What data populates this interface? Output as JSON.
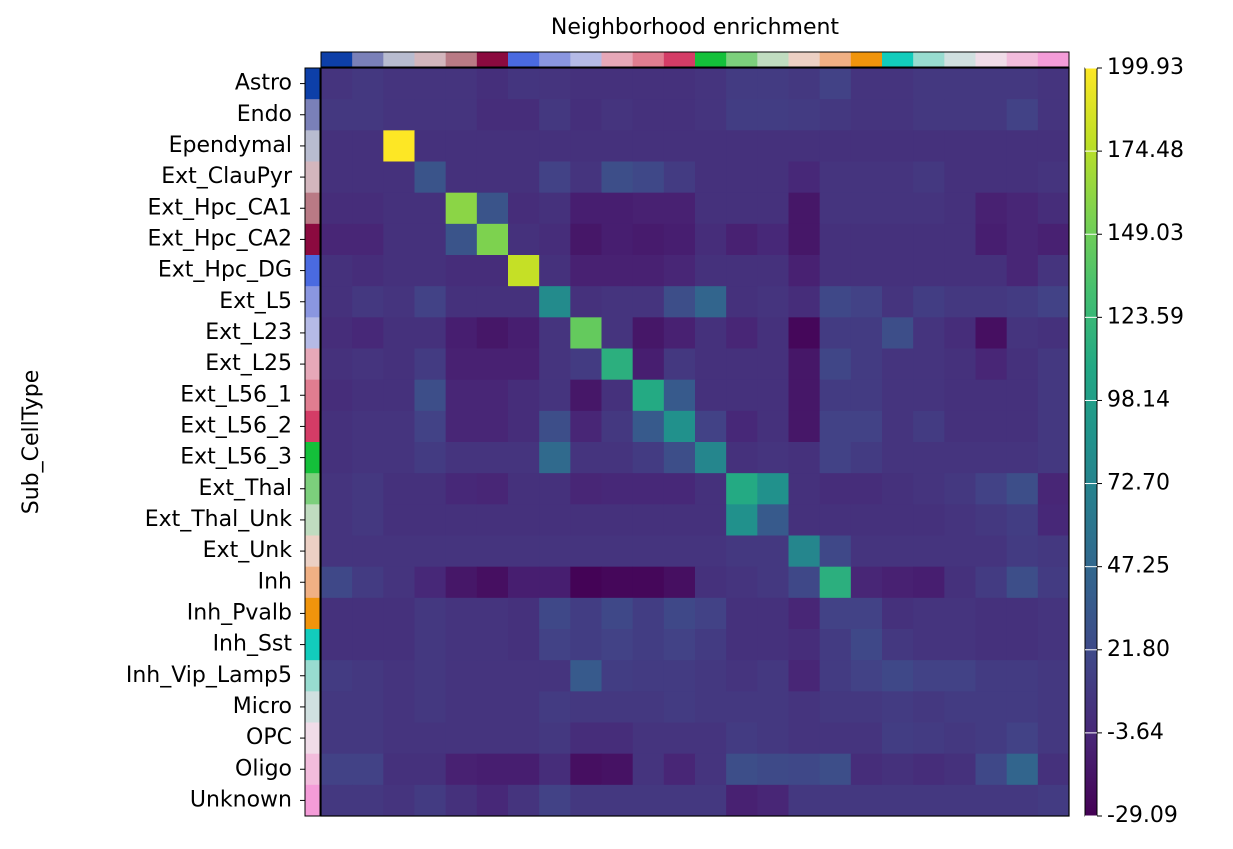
{
  "chart_data": {
    "type": "heatmap",
    "title": "Neighborhood enrichment",
    "ylabel": "Sub_CellType",
    "categories": [
      "Astro",
      "Endo",
      "Ependymal",
      "Ext_ClauPyr",
      "Ext_Hpc_CA1",
      "Ext_Hpc_CA2",
      "Ext_Hpc_DG",
      "Ext_L5",
      "Ext_L23",
      "Ext_L25",
      "Ext_L56_1",
      "Ext_L56_2",
      "Ext_L56_3",
      "Ext_Thal",
      "Ext_Thal_Unk",
      "Ext_Unk",
      "Inh",
      "Inh_Pvalb",
      "Inh_Sst",
      "Inh_Vip_Lamp5",
      "Micro",
      "OPC",
      "Oligo",
      "Unknown"
    ],
    "category_colors": [
      "#0d3fa8",
      "#7a80b8",
      "#b8bcd0",
      "#d3b6bd",
      "#b97a85",
      "#8b0a3f",
      "#4a6ae0",
      "#8a96e0",
      "#b5bae6",
      "#e6a8b8",
      "#e07d90",
      "#d43c66",
      "#14c03a",
      "#7ccf7c",
      "#c0dcc0",
      "#ecd0c4",
      "#f0b084",
      "#f0940c",
      "#12ccbc",
      "#98dcd0",
      "#d0e0e0",
      "#f0dce8",
      "#f2bcdc",
      "#f49cd8"
    ],
    "values": [
      [
        5,
        8,
        5,
        5,
        5,
        2,
        6,
        5,
        3,
        3,
        3,
        3,
        5,
        10,
        10,
        8,
        15,
        5,
        5,
        8,
        8,
        8,
        8,
        5
      ],
      [
        8,
        8,
        5,
        5,
        5,
        0,
        0,
        8,
        2,
        5,
        3,
        3,
        5,
        12,
        12,
        10,
        8,
        5,
        5,
        8,
        8,
        8,
        15,
        5
      ],
      [
        3,
        3,
        199.93,
        3,
        3,
        3,
        3,
        3,
        3,
        3,
        3,
        3,
        3,
        3,
        3,
        3,
        3,
        3,
        3,
        3,
        3,
        3,
        3,
        3
      ],
      [
        3,
        3,
        3,
        30,
        3,
        3,
        3,
        15,
        5,
        25,
        20,
        10,
        3,
        3,
        3,
        -3,
        5,
        5,
        5,
        8,
        3,
        3,
        3,
        5
      ],
      [
        0,
        0,
        3,
        3,
        160,
        30,
        0,
        3,
        -10,
        -10,
        -8,
        -8,
        3,
        3,
        3,
        -15,
        5,
        5,
        5,
        5,
        3,
        -8,
        -5,
        0
      ],
      [
        -5,
        -5,
        3,
        3,
        30,
        155,
        3,
        0,
        -15,
        -10,
        -12,
        -10,
        0,
        -8,
        -3,
        -15,
        3,
        3,
        3,
        3,
        3,
        -10,
        -5,
        -8
      ],
      [
        3,
        0,
        3,
        3,
        0,
        0,
        180,
        3,
        -8,
        -8,
        -8,
        -5,
        3,
        3,
        3,
        -8,
        3,
        3,
        3,
        3,
        3,
        3,
        -5,
        5
      ],
      [
        3,
        8,
        5,
        15,
        3,
        3,
        3,
        80,
        3,
        5,
        5,
        25,
        45,
        3,
        5,
        0,
        20,
        15,
        5,
        12,
        8,
        8,
        10,
        15
      ],
      [
        0,
        -3,
        3,
        3,
        -10,
        -15,
        -10,
        5,
        145,
        5,
        -15,
        -8,
        3,
        -5,
        3,
        -25,
        10,
        10,
        25,
        5,
        0,
        -20,
        5,
        3
      ],
      [
        3,
        5,
        3,
        10,
        -8,
        -8,
        -8,
        5,
        10,
        115,
        -10,
        8,
        3,
        3,
        3,
        -15,
        18,
        10,
        5,
        5,
        3,
        -5,
        3,
        8
      ],
      [
        0,
        3,
        3,
        25,
        -5,
        -5,
        0,
        5,
        -15,
        3,
        110,
        35,
        3,
        3,
        3,
        -15,
        10,
        10,
        5,
        5,
        3,
        3,
        3,
        8
      ],
      [
        3,
        5,
        5,
        15,
        -5,
        -5,
        0,
        25,
        -5,
        8,
        35,
        85,
        15,
        -3,
        3,
        -15,
        15,
        15,
        5,
        10,
        3,
        3,
        3,
        8
      ],
      [
        3,
        5,
        5,
        10,
        5,
        5,
        5,
        50,
        5,
        5,
        10,
        25,
        75,
        3,
        5,
        3,
        15,
        10,
        5,
        5,
        5,
        5,
        5,
        8
      ],
      [
        5,
        8,
        3,
        3,
        -3,
        -5,
        3,
        3,
        -5,
        -3,
        -3,
        -3,
        3,
        110,
        85,
        3,
        0,
        0,
        3,
        5,
        8,
        15,
        25,
        -5
      ],
      [
        5,
        8,
        3,
        3,
        3,
        3,
        3,
        3,
        3,
        3,
        3,
        3,
        3,
        85,
        35,
        3,
        3,
        3,
        3,
        3,
        5,
        8,
        12,
        -3
      ],
      [
        5,
        5,
        5,
        5,
        5,
        5,
        5,
        5,
        5,
        5,
        5,
        5,
        5,
        8,
        8,
        75,
        20,
        5,
        5,
        5,
        5,
        5,
        10,
        8
      ],
      [
        20,
        10,
        5,
        -3,
        -15,
        -20,
        -10,
        -10,
        -28,
        -25,
        -25,
        -20,
        3,
        5,
        8,
        20,
        115,
        -5,
        -8,
        -10,
        3,
        10,
        25,
        10
      ],
      [
        3,
        3,
        3,
        8,
        5,
        5,
        3,
        20,
        12,
        20,
        12,
        20,
        15,
        3,
        3,
        -5,
        15,
        15,
        3,
        5,
        5,
        3,
        3,
        5
      ],
      [
        3,
        3,
        3,
        8,
        5,
        5,
        3,
        15,
        12,
        15,
        12,
        15,
        10,
        3,
        3,
        0,
        10,
        20,
        8,
        5,
        5,
        3,
        3,
        5
      ],
      [
        10,
        8,
        5,
        8,
        5,
        5,
        5,
        5,
        35,
        12,
        10,
        10,
        8,
        5,
        8,
        -5,
        10,
        15,
        20,
        15,
        15,
        10,
        10,
        8
      ],
      [
        8,
        8,
        5,
        8,
        5,
        5,
        5,
        10,
        8,
        8,
        8,
        10,
        8,
        8,
        8,
        5,
        8,
        8,
        10,
        8,
        10,
        10,
        10,
        8
      ],
      [
        8,
        8,
        5,
        5,
        5,
        5,
        5,
        8,
        0,
        0,
        5,
        5,
        5,
        10,
        8,
        5,
        5,
        5,
        12,
        10,
        8,
        10,
        15,
        8
      ],
      [
        15,
        15,
        3,
        3,
        -8,
        -10,
        -10,
        0,
        -20,
        -18,
        5,
        -5,
        5,
        25,
        22,
        20,
        25,
        0,
        3,
        0,
        3,
        20,
        45,
        3
      ],
      [
        8,
        8,
        5,
        10,
        3,
        -3,
        5,
        15,
        8,
        8,
        8,
        8,
        8,
        -8,
        -5,
        8,
        8,
        8,
        8,
        8,
        8,
        8,
        8,
        10
      ]
    ],
    "colormap": "viridis",
    "clim": [
      -29.09,
      199.93
    ],
    "cticks": [
      -29.09,
      -3.64,
      {
        "value": 21.8,
        "label": "21.80"
      },
      47.25,
      {
        "value": 72.7,
        "label": "72.70"
      },
      98.14,
      123.59,
      149.03,
      174.48,
      199.93
    ]
  }
}
